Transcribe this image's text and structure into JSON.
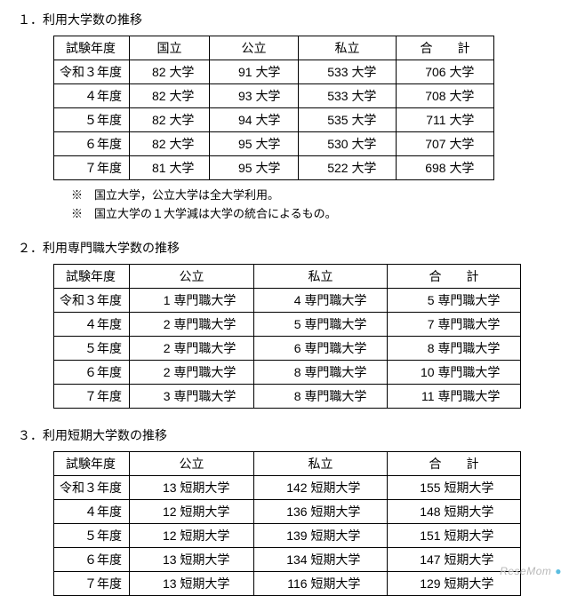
{
  "sections": [
    {
      "num": "１．",
      "title": "利用大学数の推移",
      "type": "four_col",
      "unit": "大学",
      "headers": {
        "year": "試験年度",
        "a": "国立",
        "b": "公立",
        "c": "私立",
        "t": "合　　計"
      },
      "rows": [
        {
          "year": "令和３年度",
          "a": 82,
          "b": 91,
          "c": 533,
          "t": 706
        },
        {
          "year": "４年度",
          "a": 82,
          "b": 93,
          "c": 533,
          "t": 708
        },
        {
          "year": "５年度",
          "a": 82,
          "b": 94,
          "c": 535,
          "t": 711
        },
        {
          "year": "６年度",
          "a": 82,
          "b": 95,
          "c": 530,
          "t": 707
        },
        {
          "year": "７年度",
          "a": 81,
          "b": 95,
          "c": 522,
          "t": 698
        }
      ],
      "notes": [
        "※　国立大学，公立大学は全大学利用。",
        "※　国立大学の１大学減は大学の統合によるもの。"
      ]
    },
    {
      "num": "２．",
      "title": "利用専門職大学数の推移",
      "type": "three_col",
      "unit": "専門職大学",
      "headers": {
        "year": "試験年度",
        "b": "公立",
        "c": "私立",
        "t": "合　　計"
      },
      "rows": [
        {
          "year": "令和３年度",
          "b": 1,
          "c": 4,
          "t": 5
        },
        {
          "year": "４年度",
          "b": 2,
          "c": 5,
          "t": 7
        },
        {
          "year": "５年度",
          "b": 2,
          "c": 6,
          "t": 8
        },
        {
          "year": "６年度",
          "b": 2,
          "c": 8,
          "t": 10
        },
        {
          "year": "７年度",
          "b": 3,
          "c": 8,
          "t": 11
        }
      ],
      "notes": []
    },
    {
      "num": "３．",
      "title": "利用短期大学数の推移",
      "type": "three_col",
      "unit": "短期大学",
      "headers": {
        "year": "試験年度",
        "b": "公立",
        "c": "私立",
        "t": "合　　計"
      },
      "rows": [
        {
          "year": "令和３年度",
          "b": 13,
          "c": 142,
          "t": 155
        },
        {
          "year": "４年度",
          "b": 12,
          "c": 136,
          "t": 148
        },
        {
          "year": "５年度",
          "b": 12,
          "c": 139,
          "t": 151
        },
        {
          "year": "６年度",
          "b": 13,
          "c": 134,
          "t": 147
        },
        {
          "year": "７年度",
          "b": 13,
          "c": 116,
          "t": 129
        }
      ],
      "notes": []
    }
  ],
  "watermark": {
    "text": "ReseMom",
    "dot": "●"
  }
}
